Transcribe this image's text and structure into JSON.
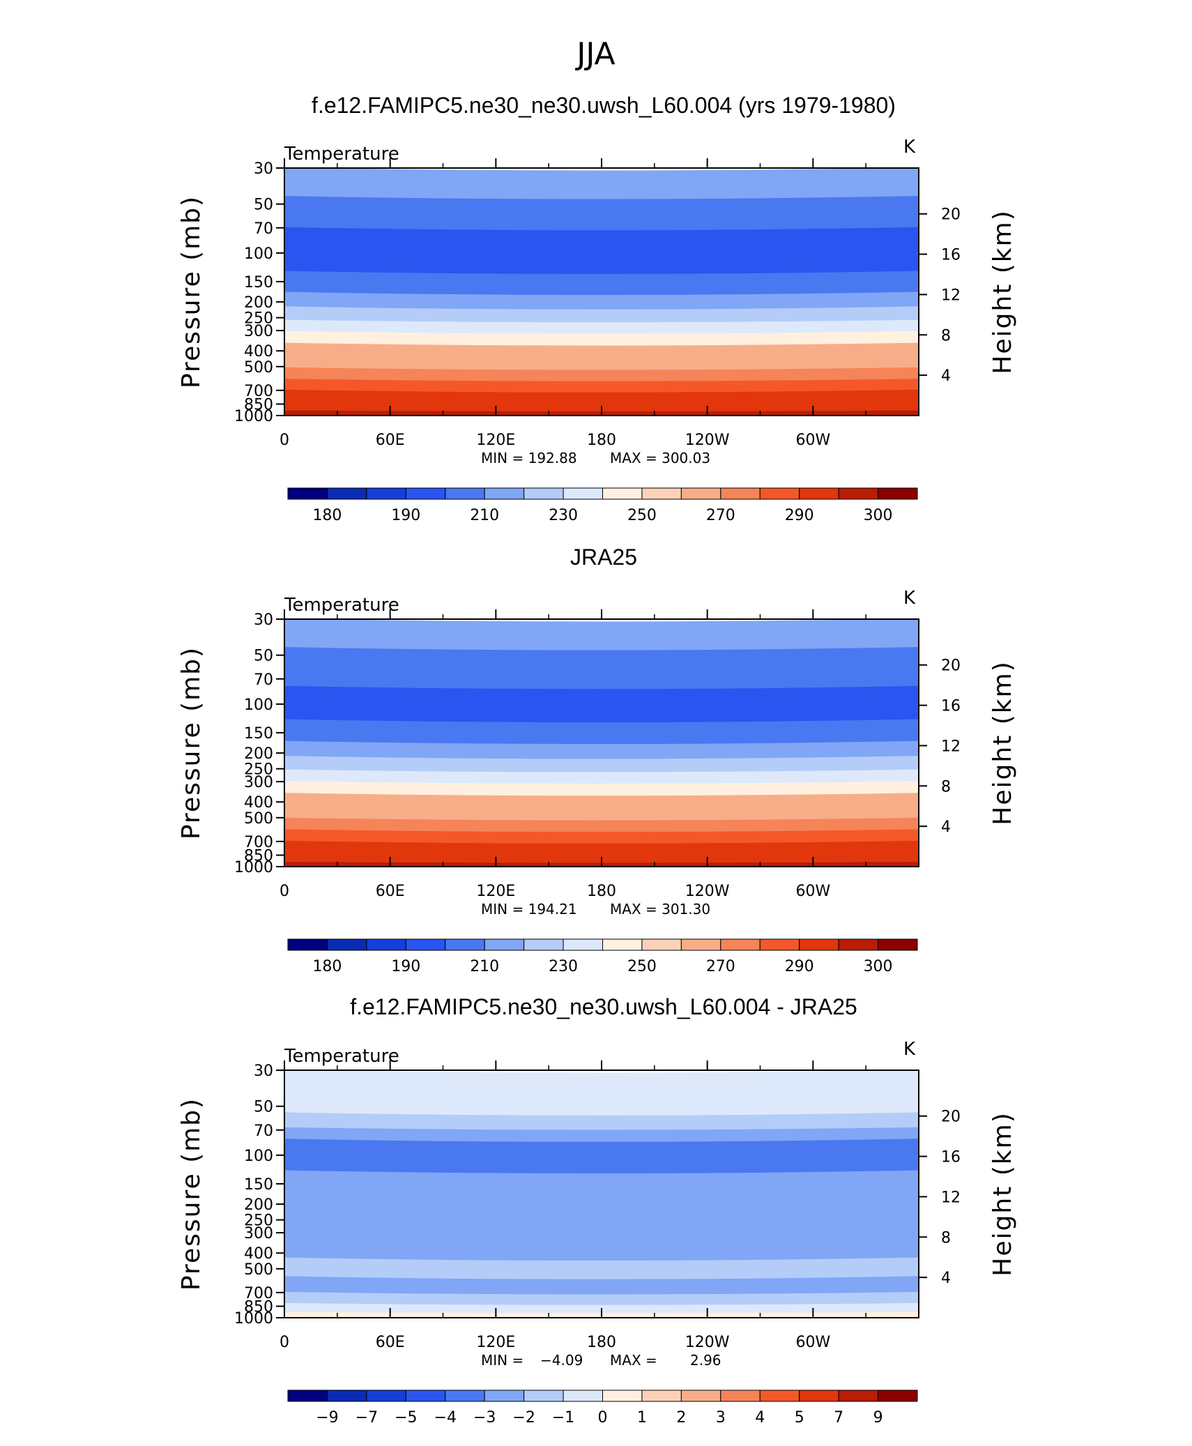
{
  "figure": {
    "title": "JJA"
  },
  "chart_data": [
    {
      "type": "heatmap",
      "title": "f.e12.FAMIPC5.ne30_ne30.uwsh_L60.004 (yrs 1979-1980)",
      "subtitle": "Temperature",
      "units": "K",
      "xlabel": "",
      "ylabel": "Pressure (mb)",
      "y2label": "Height (km)",
      "x_tick_labels": [
        "0",
        "60E",
        "120E",
        "180",
        "120W",
        "60W"
      ],
      "x_tick_lon": [
        0,
        60,
        120,
        180,
        240,
        300
      ],
      "xlim": [
        0,
        360
      ],
      "y_ticks": [
        30,
        50,
        70,
        100,
        150,
        200,
        250,
        300,
        400,
        500,
        700,
        850,
        1000
      ],
      "ylim": [
        1000,
        30
      ],
      "y_scale": "log",
      "y2_ticks": [
        4,
        8,
        12,
        16,
        20
      ],
      "min_label": "MIN = 192.88",
      "max_label": "MAX = 300.03",
      "min": 192.88,
      "max": 300.03,
      "bands": [
        {
          "p": 30,
          "v": 215
        },
        {
          "p": 45,
          "v": 205
        },
        {
          "p": 70,
          "v": 198
        },
        {
          "p": 130,
          "v": 205
        },
        {
          "p": 175,
          "v": 215
        },
        {
          "p": 215,
          "v": 225
        },
        {
          "p": 260,
          "v": 235
        },
        {
          "p": 305,
          "v": 245
        },
        {
          "p": 360,
          "v": 255
        },
        {
          "p": 430,
          "v": 262
        },
        {
          "p": 510,
          "v": 268
        },
        {
          "p": 600,
          "v": 275
        },
        {
          "p": 700,
          "v": 282
        },
        {
          "p": 830,
          "v": 288
        },
        {
          "p": 940,
          "v": 294
        },
        {
          "p": 1000,
          "v": 297
        }
      ],
      "colorbar": {
        "labels": [
          "180",
          "190",
          "210",
          "230",
          "250",
          "270",
          "290",
          "300"
        ],
        "colors": [
          "#000080",
          "#0a2bb4",
          "#163fd9",
          "#2a55f0",
          "#4a78f0",
          "#80a6f5",
          "#b4ccf8",
          "#dde9fb",
          "#fff0e0",
          "#fbd2b8",
          "#f7ae88",
          "#f58458",
          "#f4582a",
          "#e2360c",
          "#b81d05",
          "#8b0000"
        ]
      }
    },
    {
      "type": "heatmap",
      "title": "JRA25",
      "subtitle": "Temperature",
      "units": "K",
      "xlabel": "",
      "ylabel": "Pressure (mb)",
      "y2label": "Height (km)",
      "x_tick_labels": [
        "0",
        "60E",
        "120E",
        "180",
        "120W",
        "60W"
      ],
      "x_tick_lon": [
        0,
        60,
        120,
        180,
        240,
        300
      ],
      "xlim": [
        0,
        360
      ],
      "y_ticks": [
        30,
        50,
        70,
        100,
        150,
        200,
        250,
        300,
        400,
        500,
        700,
        850,
        1000
      ],
      "ylim": [
        1000,
        30
      ],
      "y_scale": "log",
      "y2_ticks": [
        4,
        8,
        12,
        16,
        20
      ],
      "min_label": "MIN = 194.21",
      "max_label": "MAX = 301.30",
      "min": 194.21,
      "max": 301.3,
      "bands": [
        {
          "p": 30,
          "v": 215
        },
        {
          "p": 45,
          "v": 205
        },
        {
          "p": 78,
          "v": 200
        },
        {
          "p": 125,
          "v": 205
        },
        {
          "p": 170,
          "v": 215
        },
        {
          "p": 210,
          "v": 225
        },
        {
          "p": 255,
          "v": 235
        },
        {
          "p": 300,
          "v": 245
        },
        {
          "p": 355,
          "v": 255
        },
        {
          "p": 425,
          "v": 262
        },
        {
          "p": 505,
          "v": 268
        },
        {
          "p": 595,
          "v": 275
        },
        {
          "p": 700,
          "v": 282
        },
        {
          "p": 830,
          "v": 288
        },
        {
          "p": 945,
          "v": 294
        },
        {
          "p": 1000,
          "v": 297
        }
      ],
      "colorbar": {
        "labels": [
          "180",
          "190",
          "210",
          "230",
          "250",
          "270",
          "290",
          "300"
        ],
        "colors": [
          "#000080",
          "#0a2bb4",
          "#163fd9",
          "#2a55f0",
          "#4a78f0",
          "#80a6f5",
          "#b4ccf8",
          "#dde9fb",
          "#fff0e0",
          "#fbd2b8",
          "#f7ae88",
          "#f58458",
          "#f4582a",
          "#e2360c",
          "#b81d05",
          "#8b0000"
        ]
      }
    },
    {
      "type": "heatmap",
      "title": "f.e12.FAMIPC5.ne30_ne30.uwsh_L60.004 - JRA25",
      "subtitle": "Temperature",
      "units": "K",
      "xlabel": "",
      "ylabel": "Pressure (mb)",
      "y2label": "Height (km)",
      "x_tick_labels": [
        "0",
        "60E",
        "120E",
        "180",
        "120W",
        "60W"
      ],
      "x_tick_lon": [
        0,
        60,
        120,
        180,
        240,
        300
      ],
      "xlim": [
        0,
        360
      ],
      "y_ticks": [
        30,
        50,
        70,
        100,
        150,
        200,
        250,
        300,
        400,
        500,
        700,
        850,
        1000
      ],
      "ylim": [
        1000,
        30
      ],
      "y_scale": "log",
      "y2_ticks": [
        4,
        8,
        12,
        16,
        20
      ],
      "min_label": "MIN =",
      "max_label": "MAX =",
      "min_value": "−4.09",
      "max_value": "2.96",
      "min": -4.09,
      "max": 2.96,
      "bands": [
        {
          "p": 30,
          "v": -0.5
        },
        {
          "p": 55,
          "v": -1.5
        },
        {
          "p": 68,
          "v": -2.5
        },
        {
          "p": 80,
          "v": -3.5
        },
        {
          "p": 125,
          "v": -2.5
        },
        {
          "p": 200,
          "v": -2.5
        },
        {
          "p": 260,
          "v": -2.0
        },
        {
          "p": 330,
          "v": -2.5
        },
        {
          "p": 430,
          "v": -1.5
        },
        {
          "p": 560,
          "v": -2.0
        },
        {
          "p": 700,
          "v": -1.5
        },
        {
          "p": 820,
          "v": -0.5
        },
        {
          "p": 930,
          "v": 0.5
        },
        {
          "p": 1000,
          "v": -0.5
        }
      ],
      "colorbar": {
        "labels": [
          "−9",
          "−7",
          "−5",
          "−4",
          "−3",
          "−2",
          "−1",
          "0",
          "1",
          "2",
          "3",
          "4",
          "5",
          "7",
          "9"
        ],
        "colors": [
          "#000080",
          "#0a2bb4",
          "#163fd9",
          "#2a55f0",
          "#4a78f0",
          "#80a6f5",
          "#b4ccf8",
          "#dde9fb",
          "#fff0e0",
          "#fbd2b8",
          "#f7ae88",
          "#f58458",
          "#f4582a",
          "#e2360c",
          "#b81d05",
          "#8b0000"
        ]
      }
    }
  ]
}
